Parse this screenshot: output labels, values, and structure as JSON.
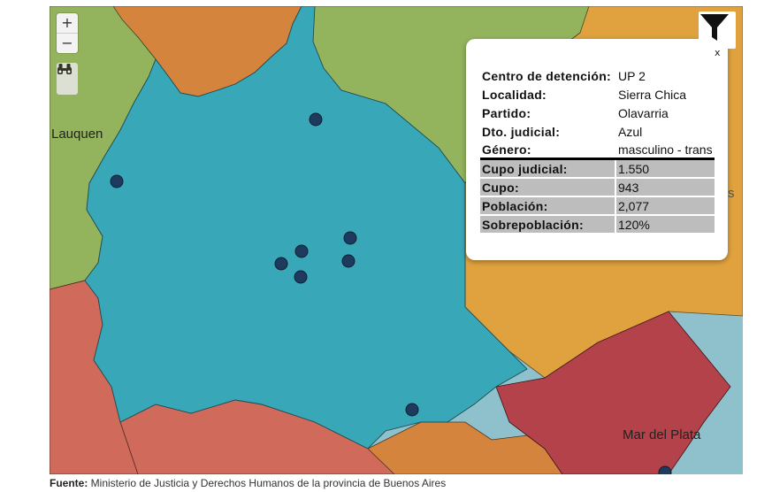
{
  "map": {
    "labels": {
      "lauquen": "Lauquen",
      "mar_del_plata": "Mar del Plata",
      "edge_fragment": "s"
    },
    "controls": {
      "zoom_in": "+",
      "zoom_out": "−"
    },
    "colors": {
      "teal_region": "#38a8b8",
      "green_region": "#93b35d",
      "orange_region": "#d5843e",
      "yellow_region": "#dfa23e",
      "red_region": "#d06a5a",
      "crimson_region": "#b3424a",
      "water": "#8fc1cd",
      "marker": "#1f3a5f"
    },
    "icons": [
      "plus-icon",
      "minus-icon",
      "binoculars-icon",
      "filter-icon",
      "close-icon"
    ]
  },
  "popup": {
    "close_label": "x",
    "rows": [
      {
        "key": "Centro de detención:",
        "value": "UP 2"
      },
      {
        "key": "Localidad:",
        "value": "Sierra Chica"
      },
      {
        "key": "Partido:",
        "value": "Olavarria"
      },
      {
        "key": "Dto. judicial:",
        "value": "Azul"
      },
      {
        "key": "Género:",
        "value": "masculino - trans"
      }
    ],
    "stats": [
      {
        "key": "Cupo judicial:",
        "value": "1.550"
      },
      {
        "key": "Cupo:",
        "value": "943"
      },
      {
        "key": "Población:",
        "value": "2,077"
      },
      {
        "key": "Sobrepoblación:",
        "value": "120%"
      }
    ]
  },
  "source": {
    "label": "Fuente:",
    "text": " Ministerio de Justicia y Derechos Humanos de la provincia de Buenos Aires"
  }
}
